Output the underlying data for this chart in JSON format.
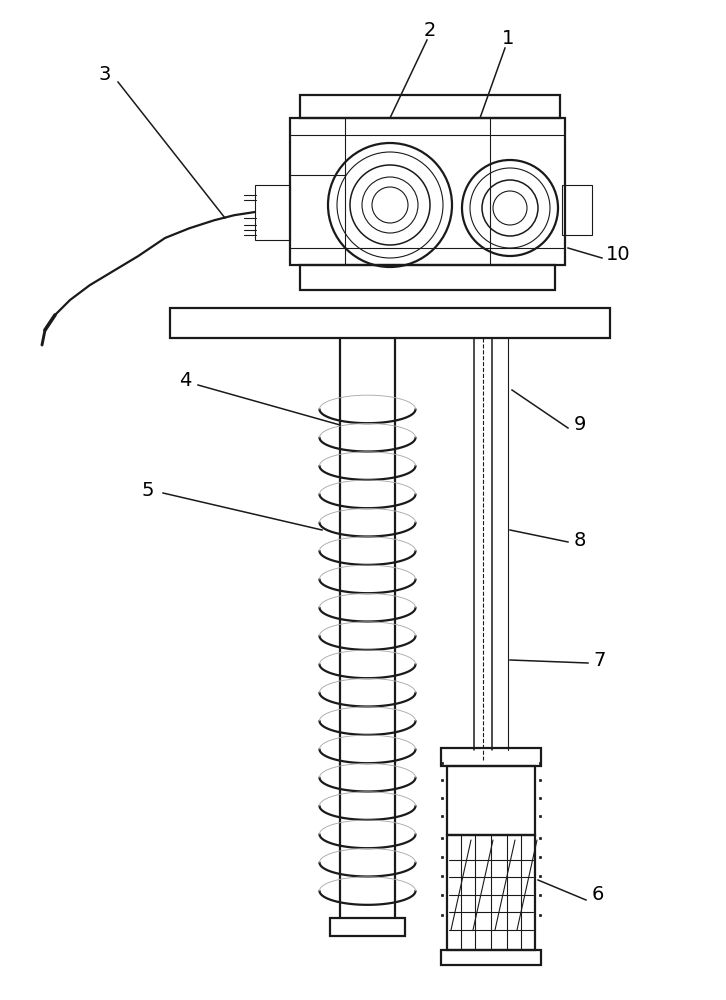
{
  "bg_color": "#ffffff",
  "line_color": "#1a1a1a",
  "label_color": "#000000",
  "lw_main": 1.6,
  "lw_thin": 0.8,
  "lw_med": 1.1,
  "figsize": [
    7.26,
    10.0
  ],
  "dpi": 100
}
